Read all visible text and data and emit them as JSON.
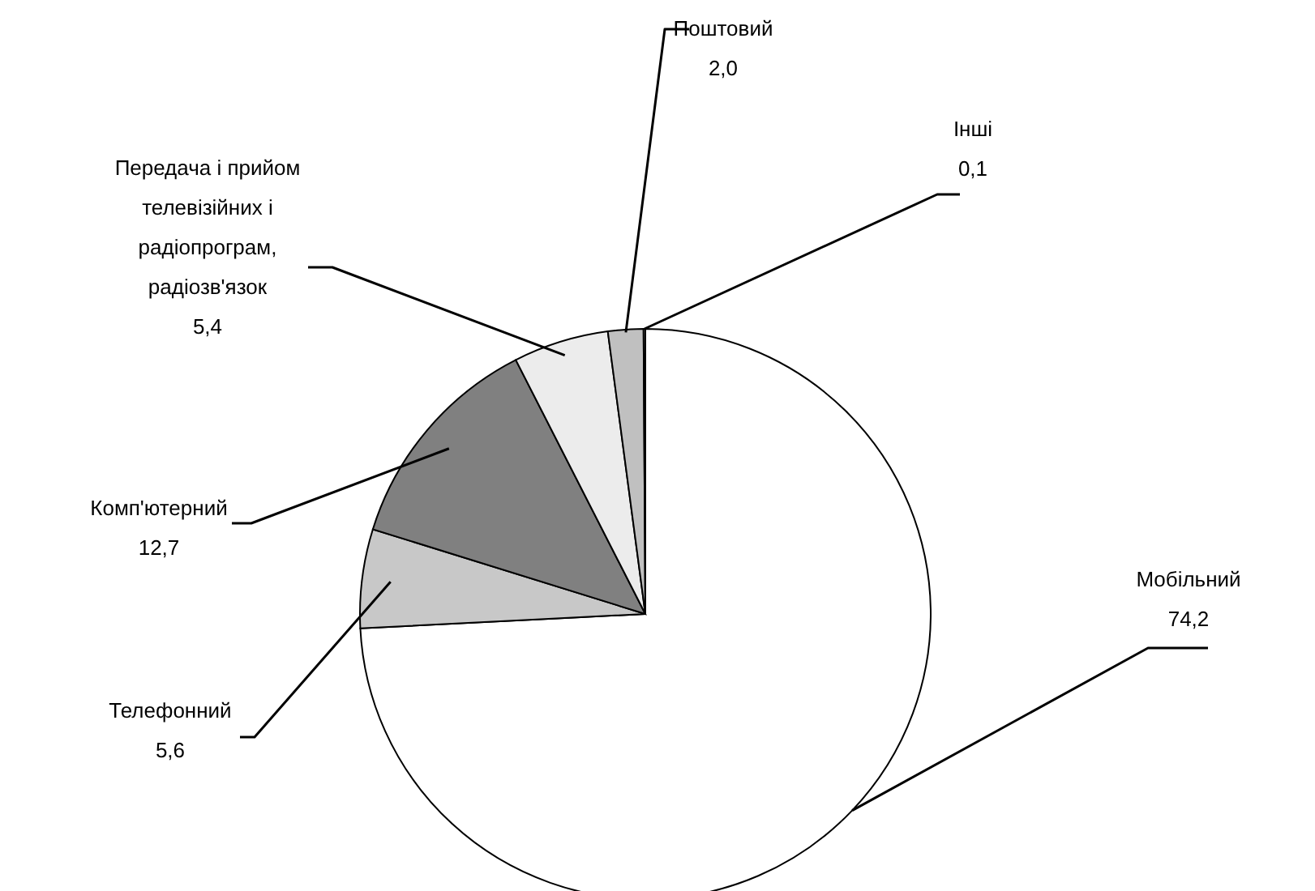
{
  "chart_data": {
    "type": "pie",
    "categories": [
      "Мобільний",
      "Телефонний",
      "Комп'ютерний",
      "Передача і прийом телевізійних і радіопрограм, радіозв'язок",
      "Поштовий",
      "Інші"
    ],
    "values": [
      74.2,
      5.6,
      12.7,
      5.4,
      2.0,
      0.1
    ],
    "value_labels": [
      "74,2",
      "5,6",
      "12,7",
      "5,4",
      "2,0",
      "0,1"
    ],
    "colors": [
      "#ffffff",
      "#c8c8c8",
      "#808080",
      "#ececec",
      "#c0c0c0",
      "#ffffff"
    ]
  }
}
